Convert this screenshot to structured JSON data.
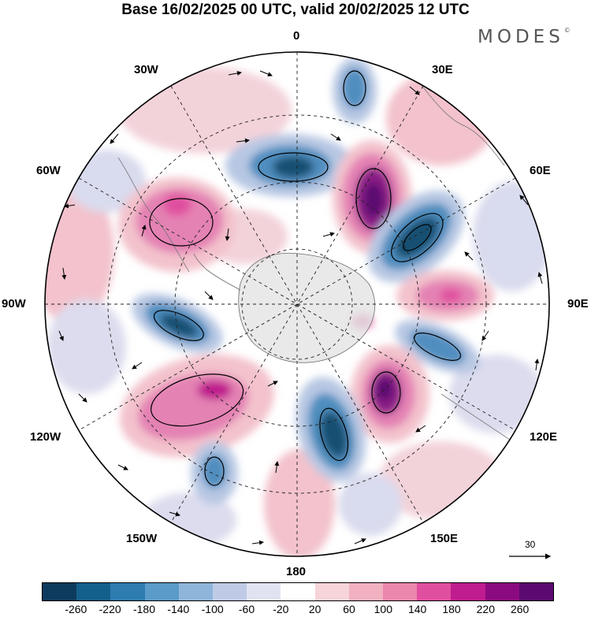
{
  "title": "Base 16/02/2025 00 UTC, valid 20/02/2025 12 UTC",
  "brand": "MODES",
  "brand_mark": "©",
  "longitude_labels": {
    "top": "0",
    "right": "90E",
    "bottom": "180",
    "left": "90W",
    "ne": "30E",
    "ene": "60E",
    "ese": "120E",
    "se": "150E",
    "sw": "150W",
    "wsw": "120W",
    "wnw": "60W",
    "nw": "30W"
  },
  "reference_vector": "30",
  "colorbar": {
    "tick_labels": [
      "-260",
      "-220",
      "-180",
      "-140",
      "-100",
      "-60",
      "-20",
      "20",
      "60",
      "100",
      "140",
      "180",
      "220",
      "260"
    ],
    "colors": [
      "#0d3b5e",
      "#155f8c",
      "#2f7cb0",
      "#5a9bc9",
      "#8fb5da",
      "#bfcbe6",
      "#e2e3f2",
      "#ffffff",
      "#f6d4d8",
      "#f1b1c0",
      "#eb86ad",
      "#e04f9f",
      "#bf1c8f",
      "#8c0a7f",
      "#5a0a70"
    ]
  },
  "map_colors": {
    "land": "#e2e2e2",
    "blue_strong": "#184f72",
    "blue_mid": "#4f8ebf",
    "blue_light": "#b7c7e3",
    "pink_light": "#f3c2cc",
    "pink_mid": "#e482b4",
    "magenta_strong": "#8a1a86",
    "purple_core": "#5a0a70"
  }
}
